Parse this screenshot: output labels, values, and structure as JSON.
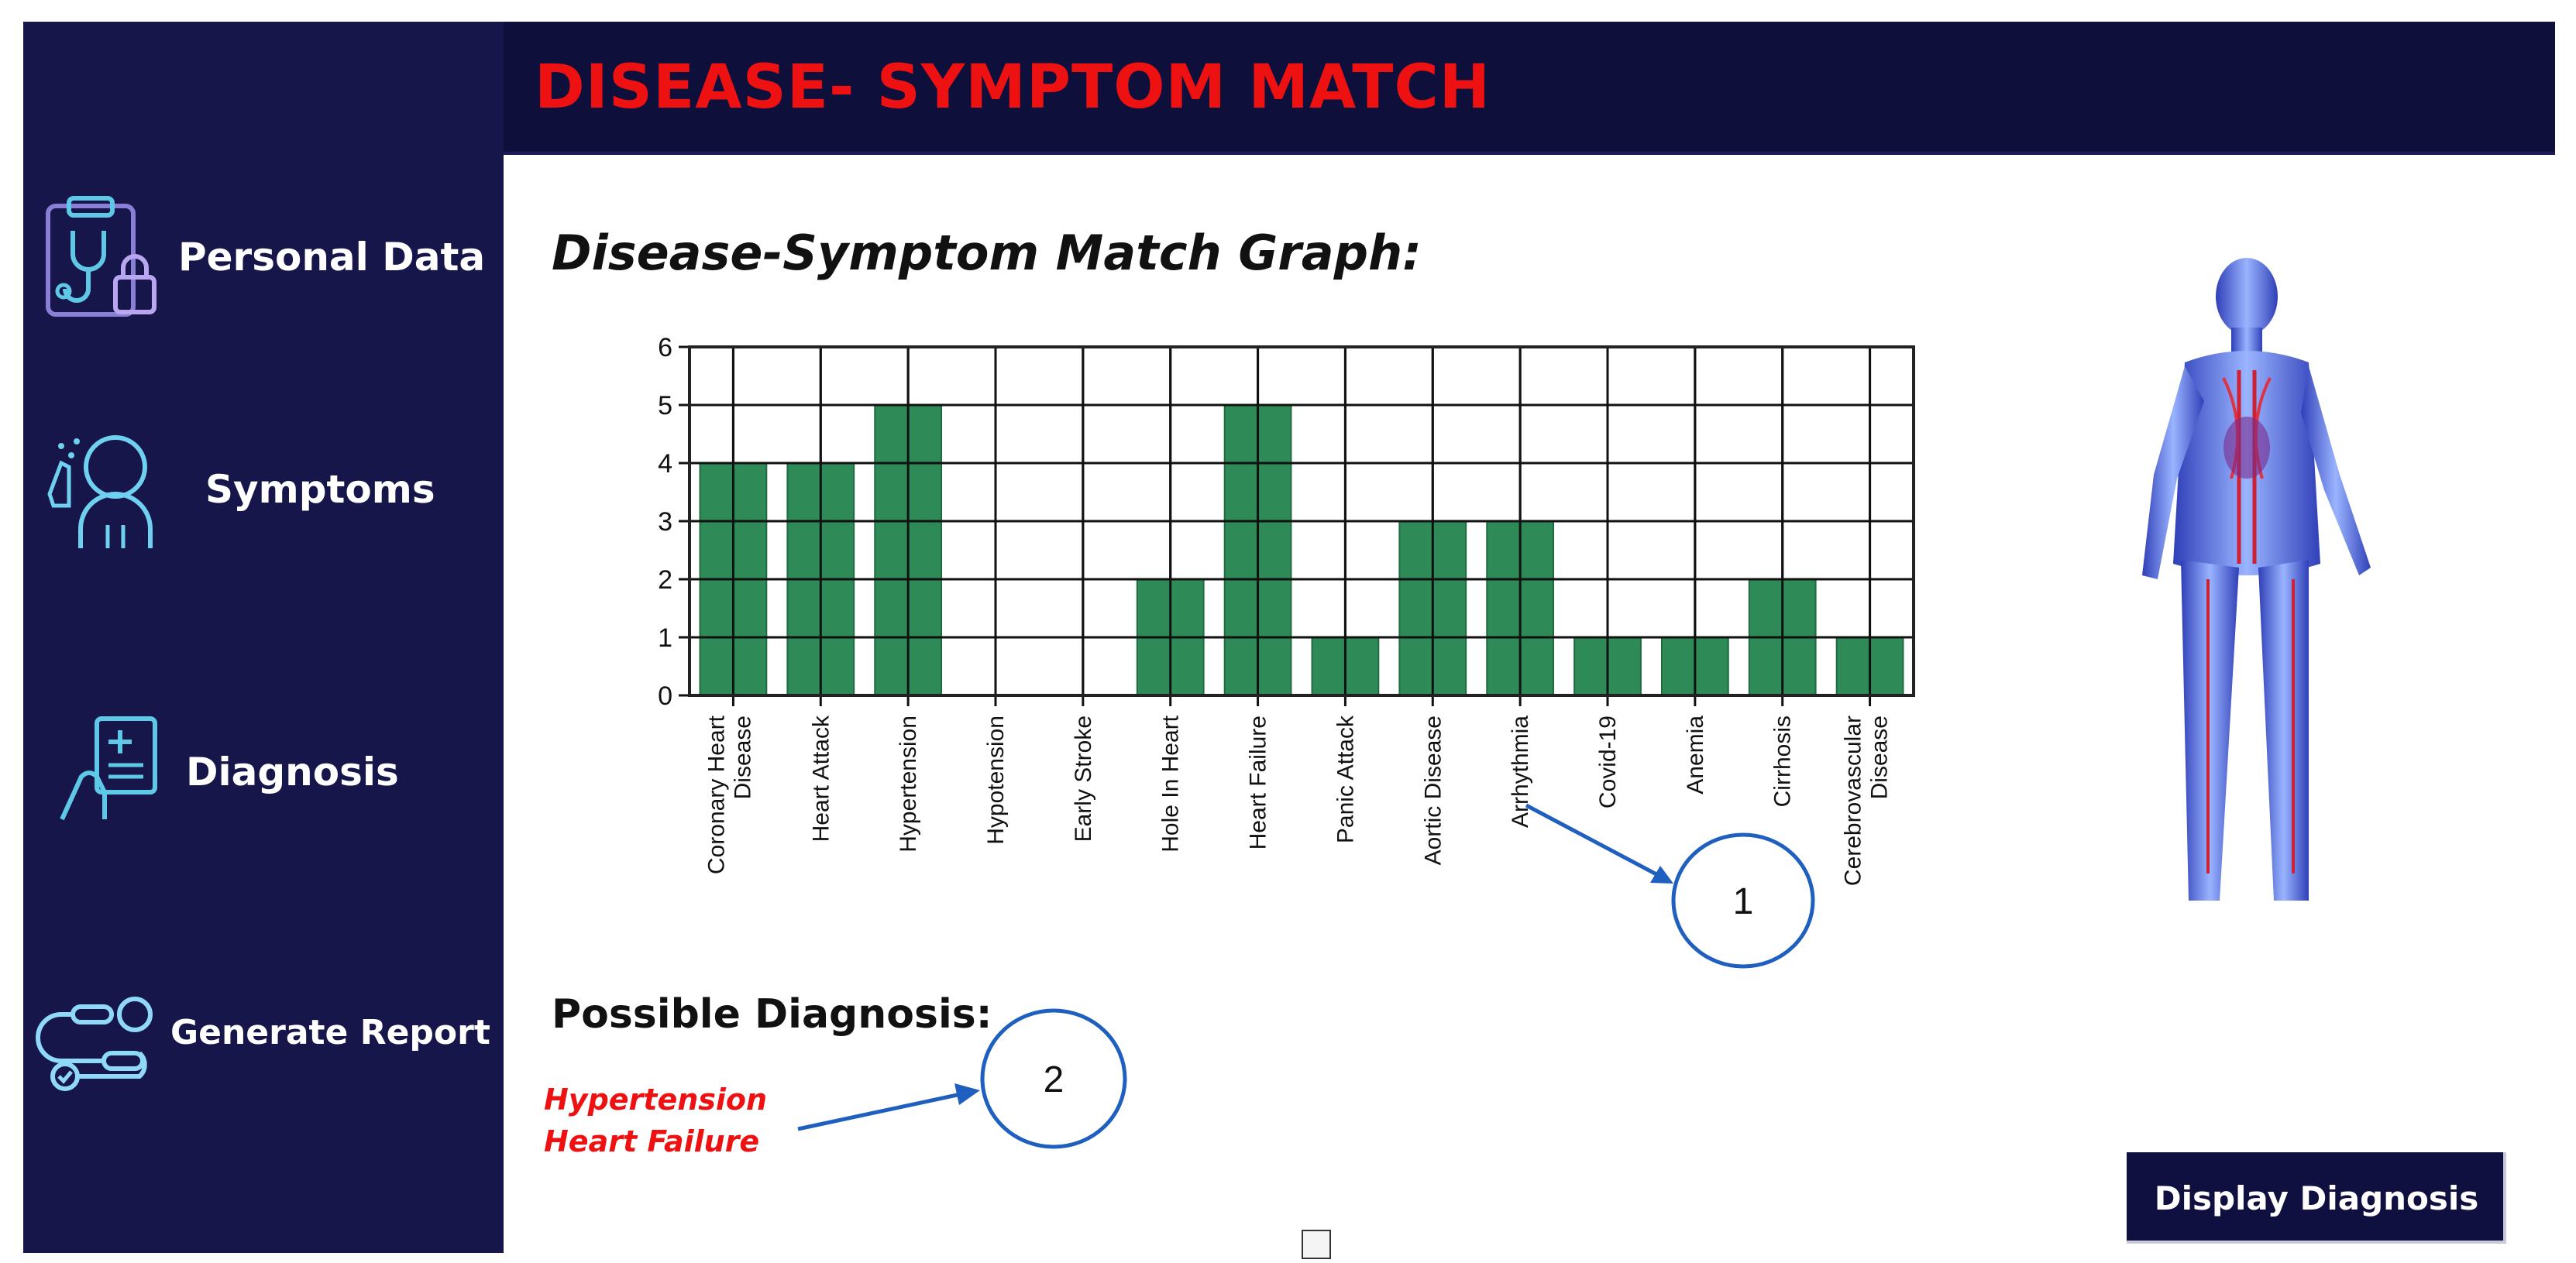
{
  "sidebar": {
    "items": [
      {
        "label": "Personal Data",
        "icon": "clipboard-stethoscope-lock-icon"
      },
      {
        "label": "Symptoms",
        "icon": "person-coughing-icon"
      },
      {
        "label": "Diagnosis",
        "icon": "hand-medical-report-icon"
      },
      {
        "label": "Generate Report",
        "icon": "workflow-pipeline-icon"
      }
    ]
  },
  "header": {
    "title": "DISEASE- SYMPTOM MATCH"
  },
  "graph": {
    "title": "Disease-Symptom Match Graph:"
  },
  "chart_data": {
    "type": "bar",
    "categories": [
      "Coronary Heart Disease",
      "Heart Attack",
      "Hypertension",
      "Hypotension",
      "Early Stroke",
      "Hole In Heart",
      "Heart Failure",
      "Panic Attack",
      "Aortic Disease",
      "Arrhythmia",
      "Covid-19",
      "Anemia",
      "Cirrhosis",
      "Cerebrovascular Disease"
    ],
    "values": [
      4,
      4,
      5,
      0,
      0,
      2,
      5,
      1,
      3,
      3,
      1,
      1,
      2,
      1
    ],
    "yticks": [
      "0",
      "1",
      "2",
      "3",
      "4",
      "5",
      "6"
    ],
    "ylim": [
      0,
      6
    ],
    "grid": true,
    "bar_color": "#2e8b57"
  },
  "annotations": {
    "callout_1": "1",
    "callout_2": "2"
  },
  "diagnosis": {
    "title": "Possible Diagnosis:",
    "items": [
      "Hypertension",
      "Heart Failure"
    ]
  },
  "actions": {
    "display_label": "Display Diagnosis"
  },
  "colors": {
    "sidebar": "#16164a",
    "header": "#0f0f3c",
    "accent_red": "#ee1111",
    "callout_blue": "#1f5fbf"
  }
}
